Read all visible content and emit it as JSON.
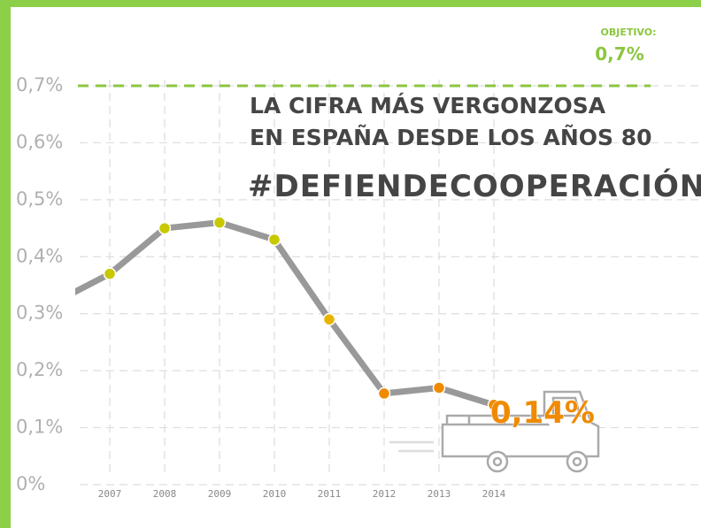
{
  "chart_data": {
    "type": "line",
    "title_lines": [
      "LA CIFRA MÁS VERGONZOSA",
      "EN ESPAÑA DESDE LOS AÑOS 80"
    ],
    "hashtag": "#DEFIENDECOOPERACIÓN",
    "target_label": "OBJETIVO:",
    "target": {
      "value": 0.7,
      "label": "0,7%"
    },
    "target_color": "#8cc63f",
    "categories": [
      null,
      "2007",
      "2008",
      "2009",
      "2010",
      "2011",
      "2012",
      "2013",
      "2014"
    ],
    "series": [
      {
        "color": "#999999",
        "values": [
          0.32,
          0.37,
          0.45,
          0.46,
          0.43,
          0.29,
          0.16,
          0.17,
          0.14
        ],
        "value_labels": [
          null,
          null,
          null,
          null,
          null,
          null,
          null,
          null,
          "0,14%"
        ],
        "point_colors": [
          "#c8c800",
          "#c8c800",
          "#c8c800",
          "#c8c800",
          "#c8c800",
          "#e8b400",
          "#f08a00",
          "#f08a00",
          "#f08a00"
        ]
      }
    ],
    "ylim": [
      0,
      0.7
    ],
    "yticks": [
      {
        "value": 0,
        "label": "0%"
      },
      {
        "value": 0.1,
        "label": "0,1%"
      },
      {
        "value": 0.2,
        "label": "0,2%"
      },
      {
        "value": 0.3,
        "label": "0,3%"
      },
      {
        "value": 0.4,
        "label": "0,4%"
      },
      {
        "value": 0.5,
        "label": "0,5%"
      },
      {
        "value": 0.6,
        "label": "0,6%"
      },
      {
        "value": 0.7,
        "label": "0,7%"
      }
    ],
    "grid": true,
    "label_color": "#f08a00"
  }
}
